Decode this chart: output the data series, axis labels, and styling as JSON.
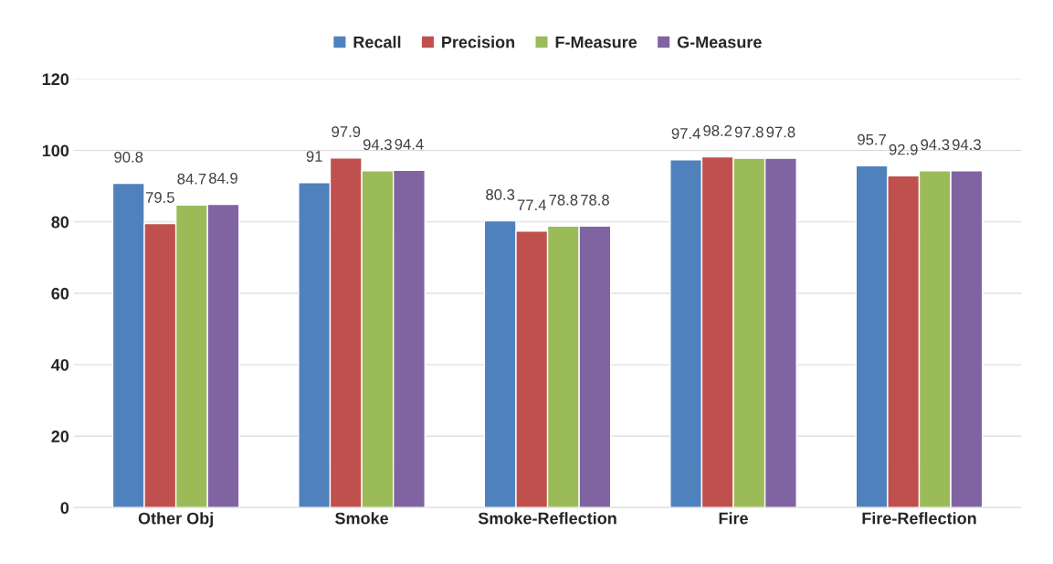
{
  "chart_data": {
    "type": "bar",
    "categories": [
      "Other Obj",
      "Smoke",
      "Smoke-Reflection",
      "Fire",
      "Fire-Reflection"
    ],
    "series": [
      {
        "name": "Recall",
        "color": "#4f81bd",
        "values": [
          90.8,
          91,
          80.3,
          97.4,
          95.7
        ]
      },
      {
        "name": "Precision",
        "color": "#c0504d",
        "values": [
          79.5,
          97.9,
          77.4,
          98.2,
          92.9
        ]
      },
      {
        "name": "F-Measure",
        "color": "#9bbb59",
        "values": [
          84.7,
          94.3,
          78.8,
          97.8,
          94.3
        ]
      },
      {
        "name": "G-Measure",
        "color": "#8064a2",
        "values": [
          84.9,
          94.4,
          78.8,
          97.8,
          94.3
        ]
      }
    ],
    "ylim": [
      0,
      120
    ],
    "yticks": [
      0,
      20,
      40,
      60,
      80,
      100,
      120
    ],
    "grid": "y",
    "legend": "top",
    "data_labels": true
  }
}
